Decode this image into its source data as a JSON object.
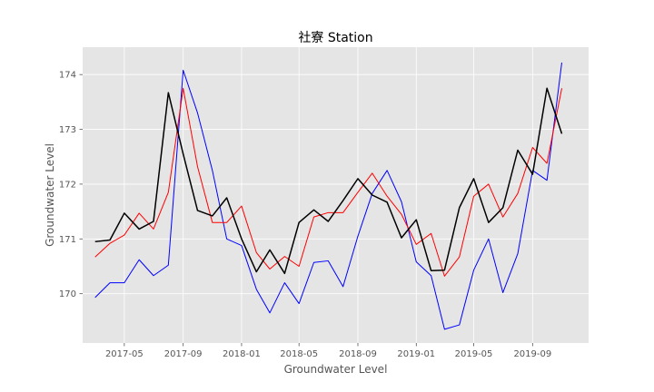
{
  "chart_data": {
    "type": "line",
    "title": "社寮 Station",
    "xlabel": "Groundwater Level",
    "ylabel": "Groundwater Level",
    "xlim": [
      "2017-02-03",
      "2019-12-27"
    ],
    "ylim": [
      169.1,
      174.5
    ],
    "x_ticks": [
      "2017-05",
      "2017-09",
      "2018-01",
      "2018-05",
      "2018-09",
      "2019-01",
      "2019-05",
      "2019-09"
    ],
    "y_ticks": [
      170,
      171,
      172,
      173,
      174
    ],
    "grid": true,
    "x": [
      "2017-03-01",
      "2017-04-01",
      "2017-05-01",
      "2017-06-01",
      "2017-07-01",
      "2017-08-01",
      "2017-09-01",
      "2017-10-01",
      "2017-11-01",
      "2017-12-01",
      "2018-01-01",
      "2018-02-01",
      "2018-03-01",
      "2018-04-01",
      "2018-05-01",
      "2018-06-01",
      "2018-07-01",
      "2018-08-01",
      "2018-09-01",
      "2018-10-01",
      "2018-11-01",
      "2018-12-01",
      "2019-01-01",
      "2019-02-01",
      "2019-03-01",
      "2019-04-01",
      "2019-05-01",
      "2019-06-01",
      "2019-07-01",
      "2019-08-01",
      "2019-09-01",
      "2019-10-01",
      "2019-11-01"
    ],
    "series": [
      {
        "color": "#000000",
        "width": 1.5,
        "values": [
          170.95,
          170.98,
          171.47,
          171.18,
          171.32,
          173.67,
          172.55,
          171.52,
          171.42,
          171.75,
          171.0,
          170.4,
          170.8,
          170.37,
          171.3,
          171.53,
          171.32,
          171.7,
          172.1,
          171.8,
          171.67,
          171.02,
          171.35,
          170.42,
          170.43,
          171.57,
          172.1,
          171.3,
          171.57,
          172.62,
          172.18,
          173.75,
          172.92
        ]
      },
      {
        "color": "#ff0000",
        "width": 1.0,
        "values": [
          170.67,
          170.92,
          171.07,
          171.47,
          171.18,
          171.85,
          173.75,
          172.32,
          171.3,
          171.3,
          171.6,
          170.75,
          170.45,
          170.68,
          170.5,
          171.4,
          171.48,
          171.48,
          171.85,
          172.2,
          171.78,
          171.45,
          170.9,
          171.1,
          170.32,
          170.67,
          171.78,
          172.0,
          171.4,
          171.83,
          172.67,
          172.38,
          173.75
        ]
      },
      {
        "color": "#0000ff",
        "width": 1.0,
        "values": [
          169.93,
          170.2,
          170.2,
          170.62,
          170.33,
          170.52,
          174.08,
          173.3,
          172.25,
          171.0,
          170.88,
          170.08,
          169.65,
          170.2,
          169.82,
          170.57,
          170.6,
          170.13,
          171.05,
          171.83,
          172.25,
          171.68,
          170.58,
          170.33,
          169.35,
          169.43,
          170.43,
          171.0,
          170.02,
          170.73,
          172.25,
          172.07,
          174.22
        ]
      }
    ]
  }
}
